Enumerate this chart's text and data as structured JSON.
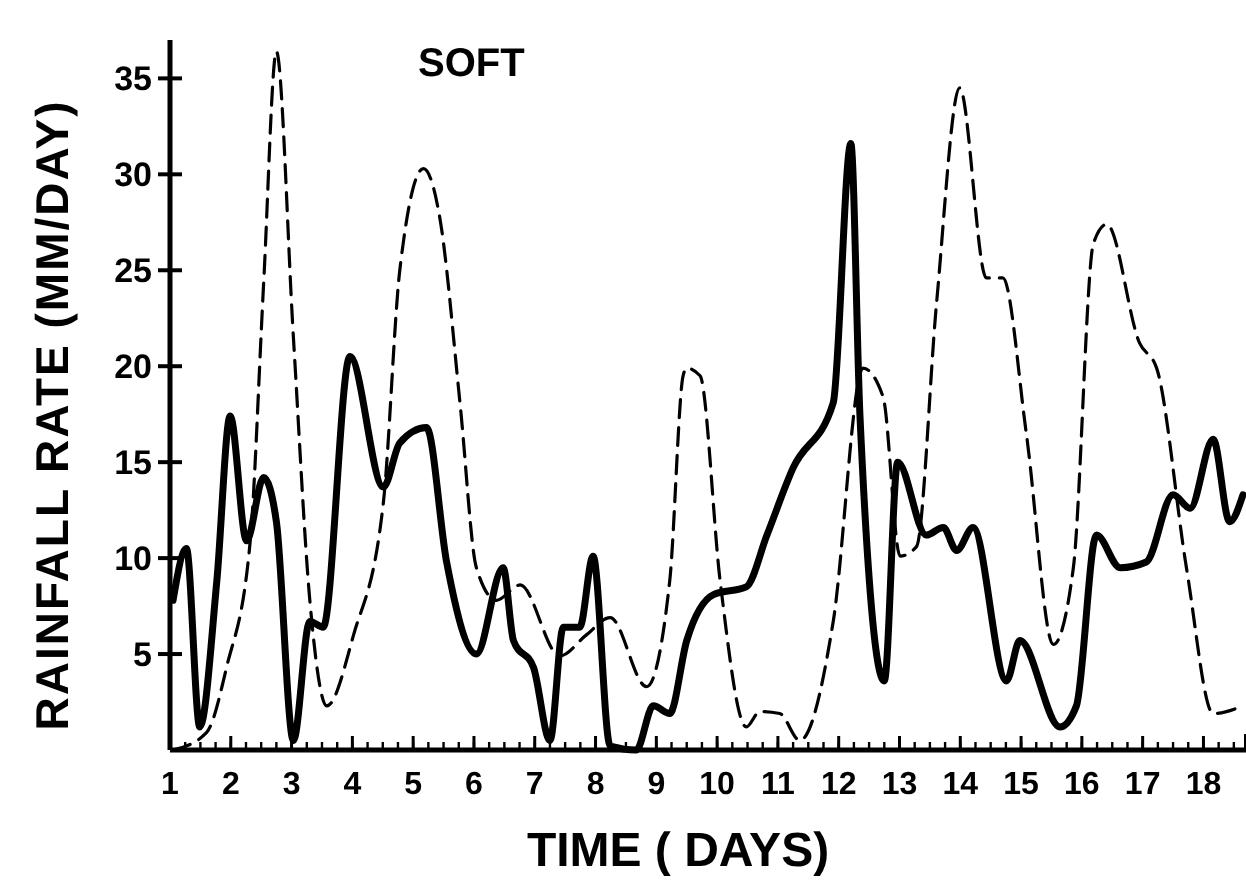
{
  "chart_data": {
    "type": "line",
    "title": "SOFT",
    "xlabel": "TIME ( DAYS)",
    "ylabel": "RAINFALL RATE (MM/DAY)",
    "xlim": [
      1,
      18.7
    ],
    "xticks": [
      1,
      2,
      3,
      4,
      5,
      6,
      7,
      8,
      9,
      10,
      11,
      12,
      13,
      14,
      15,
      16,
      17,
      18
    ],
    "ylim": [
      0,
      37
    ],
    "yticks": [
      5,
      10,
      15,
      20,
      25,
      30,
      35
    ],
    "marker": "none",
    "series": [
      {
        "color": "#000000",
        "line_style": "solid",
        "x": [
          1.05,
          1.27,
          1.49,
          1.77,
          1.99,
          2.26,
          2.54,
          2.75,
          3.03,
          3.3,
          3.52,
          3.96,
          4.51,
          4.78,
          5.22,
          5.55,
          6.04,
          6.48,
          6.65,
          6.98,
          7.25,
          7.47,
          7.74,
          7.96,
          8.24,
          8.67,
          8.95,
          9.22,
          9.5,
          9.94,
          10.48,
          10.82,
          11.25,
          11.91,
          12.2,
          12.35,
          12.75,
          12.97,
          13.44,
          13.72,
          13.94,
          14.21,
          14.76,
          14.98,
          15.64,
          15.91,
          16.24,
          16.63,
          17.06,
          17.5,
          17.78,
          18.16,
          18.43,
          18.65
        ],
        "values": [
          7.8,
          10.5,
          1.2,
          8.8,
          17.4,
          10.9,
          14.2,
          11.9,
          0.5,
          6.7,
          6.4,
          20.5,
          13.7,
          16.0,
          16.8,
          9.8,
          5.0,
          9.5,
          5.7,
          4.3,
          0.5,
          6.4,
          6.4,
          10.1,
          0.2,
          0,
          2.3,
          1.9,
          5.7,
          8.1,
          8.5,
          11.2,
          14.7,
          18.1,
          31.6,
          17.4,
          3.6,
          15.0,
          11.2,
          11.6,
          10.4,
          11.6,
          3.6,
          5.7,
          1.2,
          2.3,
          11.2,
          9.5,
          9.8,
          13.3,
          12.6,
          16.2,
          11.9,
          13.3
        ]
      },
      {
        "color": "#000000",
        "line_style": "dashed",
        "x": [
          1.05,
          1.6,
          1.93,
          2.32,
          2.54,
          2.75,
          3.03,
          3.3,
          3.58,
          4.02,
          4.51,
          4.78,
          5.17,
          5.44,
          5.77,
          6.04,
          6.37,
          6.76,
          7.41,
          7.85,
          8.24,
          8.84,
          9.22,
          9.44,
          9.5,
          9.72,
          10.05,
          10.48,
          10.7,
          11.03,
          11.36,
          11.91,
          12.4,
          12.73,
          13.01,
          13.28,
          13.61,
          13.99,
          14.43,
          14.7,
          15.09,
          15.53,
          15.86,
          16.19,
          16.41,
          16.95,
          17.23,
          17.72,
          18.16,
          18.65
        ],
        "values": [
          0,
          0.9,
          4.3,
          10.9,
          24.3,
          36.4,
          21.5,
          7.8,
          2.3,
          6.0,
          12.9,
          25.0,
          30.3,
          27.7,
          18.1,
          9.5,
          7.8,
          8.6,
          4.9,
          6.0,
          6.9,
          3.3,
          8.8,
          19.5,
          19.9,
          19.5,
          8.8,
          1.2,
          2.0,
          1.9,
          0.5,
          6.7,
          19.9,
          18.4,
          10.1,
          10.6,
          23.3,
          34.5,
          24.6,
          24.6,
          16.4,
          5.5,
          9.5,
          26.4,
          27.4,
          21.2,
          19.9,
          9.5,
          1.9,
          2.3
        ]
      }
    ]
  }
}
